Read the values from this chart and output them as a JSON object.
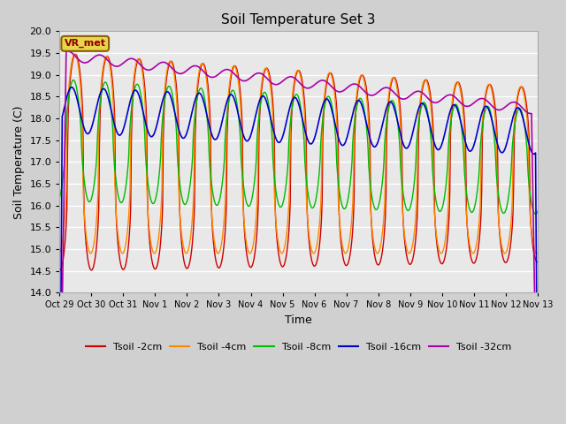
{
  "title": "Soil Temperature Set 3",
  "xlabel": "Time",
  "ylabel": "Soil Temperature (C)",
  "ylim": [
    14.0,
    20.0
  ],
  "yticks": [
    14.0,
    14.5,
    15.0,
    15.5,
    16.0,
    16.5,
    17.0,
    17.5,
    18.0,
    18.5,
    19.0,
    19.5,
    20.0
  ],
  "xtick_labels": [
    "Oct 29",
    "Oct 30",
    "Oct 31",
    "Nov 1",
    "Nov 2",
    "Nov 3",
    "Nov 4",
    "Nov 5",
    "Nov 6",
    "Nov 7",
    "Nov 8",
    "Nov 9",
    "Nov 10",
    "Nov 11",
    "Nov 12",
    "Nov 13"
  ],
  "series_colors": [
    "#cc0000",
    "#ff8800",
    "#00bb00",
    "#0000cc",
    "#aa00aa"
  ],
  "series_labels": [
    "Tsoil -2cm",
    "Tsoil -4cm",
    "Tsoil -8cm",
    "Tsoil -16cm",
    "Tsoil -32cm"
  ],
  "legend_label": "VR_met",
  "fig_bg_color": "#d0d0d0",
  "plot_bg_color": "#e8e8e8",
  "grid_color": "#ffffff",
  "title_fontsize": 11,
  "axis_fontsize": 9
}
